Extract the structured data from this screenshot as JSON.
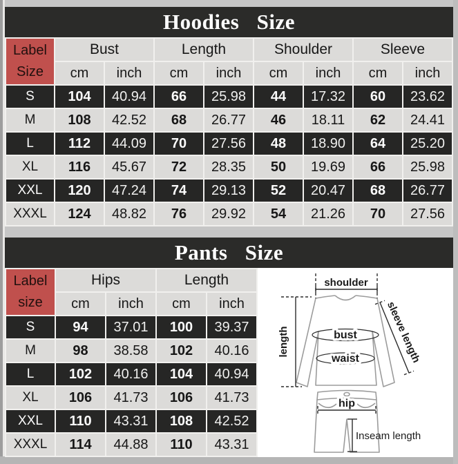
{
  "hoodies": {
    "title": "Hoodies Size",
    "corner": [
      "Label",
      "Size"
    ],
    "groups": [
      "Bust",
      "Length",
      "Shoulder",
      "Sleeve"
    ],
    "units": [
      "cm",
      "inch"
    ],
    "rows": [
      {
        "label": "S",
        "values": [
          "104",
          "40.94",
          "66",
          "25.98",
          "44",
          "17.32",
          "60",
          "23.62"
        ]
      },
      {
        "label": "M",
        "values": [
          "108",
          "42.52",
          "68",
          "26.77",
          "46",
          "18.11",
          "62",
          "24.41"
        ]
      },
      {
        "label": "L",
        "values": [
          "112",
          "44.09",
          "70",
          "27.56",
          "48",
          "18.90",
          "64",
          "25.20"
        ]
      },
      {
        "label": "XL",
        "values": [
          "116",
          "45.67",
          "72",
          "28.35",
          "50",
          "19.69",
          "66",
          "25.98"
        ]
      },
      {
        "label": "XXL",
        "values": [
          "120",
          "47.24",
          "74",
          "29.13",
          "52",
          "20.47",
          "68",
          "26.77"
        ]
      },
      {
        "label": "XXXL",
        "values": [
          "124",
          "48.82",
          "76",
          "29.92",
          "54",
          "21.26",
          "70",
          "27.56"
        ]
      }
    ]
  },
  "pants": {
    "title": "Pants Size",
    "corner": [
      "Label",
      "size"
    ],
    "groups": [
      "Hips",
      "Length"
    ],
    "units": [
      "cm",
      "inch"
    ],
    "rows": [
      {
        "label": "S",
        "values": [
          "94",
          "37.01",
          "100",
          "39.37"
        ]
      },
      {
        "label": "M",
        "values": [
          "98",
          "38.58",
          "102",
          "40.16"
        ]
      },
      {
        "label": "L",
        "values": [
          "102",
          "40.16",
          "104",
          "40.94"
        ]
      },
      {
        "label": "XL",
        "values": [
          "106",
          "41.73",
          "106",
          "41.73"
        ]
      },
      {
        "label": "XXL",
        "values": [
          "110",
          "43.31",
          "108",
          "42.52"
        ]
      },
      {
        "label": "XXXL",
        "values": [
          "114",
          "44.88",
          "110",
          "43.31"
        ]
      }
    ]
  },
  "diagram": {
    "labels": {
      "shoulder": "shoulder",
      "length": "length",
      "bust": "bust",
      "waist": "waist",
      "sleeve_length": "sleeve length",
      "hip": "hip",
      "inseam": "Inseam length"
    }
  },
  "colors": {
    "dark_cell": "#262625",
    "light_cell": "#dcdbd9",
    "label_cell": "#c0504d",
    "banner": "#2b2b29",
    "page_bg": "#c6c6c6"
  },
  "chart_data": [
    {
      "type": "table",
      "title": "Hoodies Size",
      "columns": [
        "Label Size",
        "Bust cm",
        "Bust inch",
        "Length cm",
        "Length inch",
        "Shoulder cm",
        "Shoulder inch",
        "Sleeve cm",
        "Sleeve inch"
      ],
      "rows": [
        [
          "S",
          104,
          40.94,
          66,
          25.98,
          44,
          17.32,
          60,
          23.62
        ],
        [
          "M",
          108,
          42.52,
          68,
          26.77,
          46,
          18.11,
          62,
          24.41
        ],
        [
          "L",
          112,
          44.09,
          70,
          27.56,
          48,
          18.9,
          64,
          25.2
        ],
        [
          "XL",
          116,
          45.67,
          72,
          28.35,
          50,
          19.69,
          66,
          25.98
        ],
        [
          "XXL",
          120,
          47.24,
          74,
          29.13,
          52,
          20.47,
          68,
          26.77
        ],
        [
          "XXXL",
          124,
          48.82,
          76,
          29.92,
          54,
          21.26,
          70,
          27.56
        ]
      ]
    },
    {
      "type": "table",
      "title": "Pants Size",
      "columns": [
        "Label size",
        "Hips cm",
        "Hips inch",
        "Length cm",
        "Length inch"
      ],
      "rows": [
        [
          "S",
          94,
          37.01,
          100,
          39.37
        ],
        [
          "M",
          98,
          38.58,
          102,
          40.16
        ],
        [
          "L",
          102,
          40.16,
          104,
          40.94
        ],
        [
          "XL",
          106,
          41.73,
          106,
          41.73
        ],
        [
          "XXL",
          110,
          43.31,
          108,
          42.52
        ],
        [
          "XXXL",
          114,
          44.88,
          110,
          43.31
        ]
      ]
    }
  ]
}
